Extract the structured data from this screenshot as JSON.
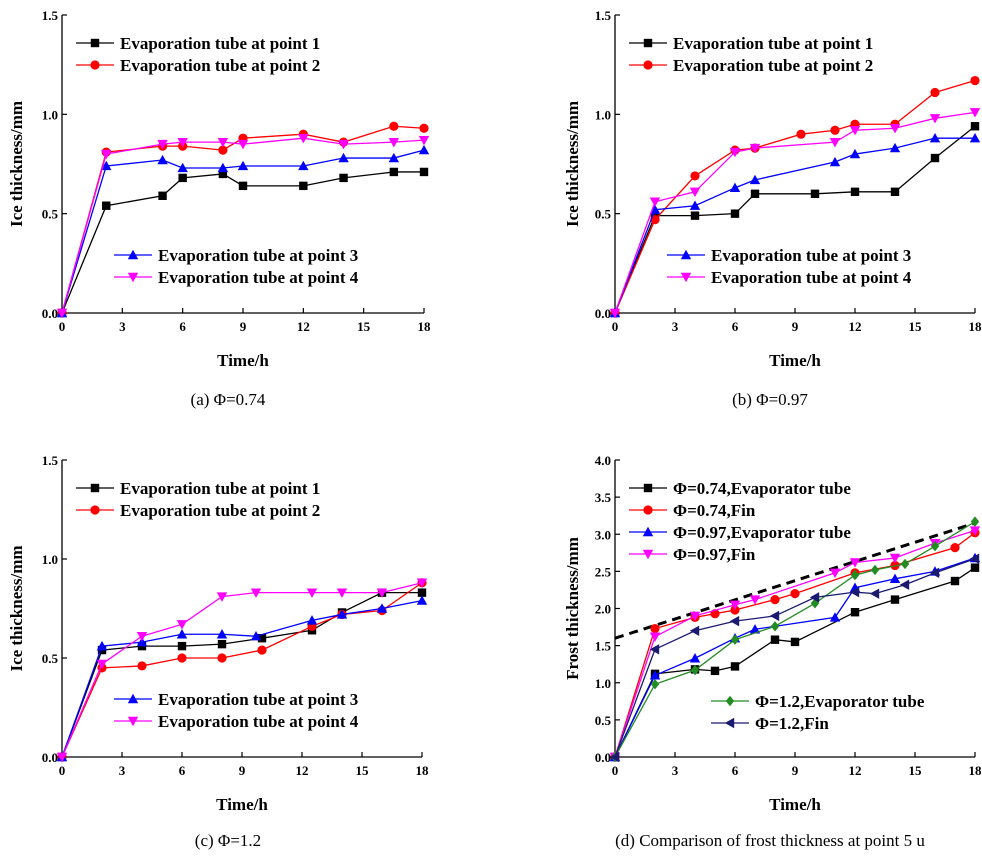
{
  "chart_data": [
    {
      "type": "line",
      "caption": "(a) Φ=0.74",
      "xlabel": "Time/h",
      "ylabel": "Ice thickness/mm",
      "xlim": [
        0,
        18
      ],
      "ylim": [
        0,
        1.5
      ],
      "xticks": [
        "0",
        "3",
        "6",
        "9",
        "12",
        "15",
        "18"
      ],
      "yticks": [
        "0.0",
        "0.5",
        "1.0",
        "1.5"
      ],
      "legend_groups": [
        {
          "position": "top-left",
          "items": [
            0,
            1
          ]
        },
        {
          "position": "bottom-right",
          "items": [
            2,
            3
          ]
        }
      ],
      "series": [
        {
          "name": "Evaporation tube at  point 1",
          "color": "#000000",
          "marker": "square",
          "x": [
            0,
            2.2,
            5,
            6,
            8,
            9,
            12,
            14,
            16.5,
            18
          ],
          "y": [
            0,
            0.54,
            0.59,
            0.68,
            0.7,
            0.64,
            0.64,
            0.68,
            0.71,
            0.71
          ]
        },
        {
          "name": "Evaporation tube at  point 2",
          "color": "#ff0000",
          "marker": "circle",
          "x": [
            0,
            2.2,
            5,
            6,
            8,
            9,
            12,
            14,
            16.5,
            18
          ],
          "y": [
            0,
            0.81,
            0.84,
            0.84,
            0.82,
            0.88,
            0.9,
            0.86,
            0.94,
            0.93
          ]
        },
        {
          "name": "Evaporation tube at point 3",
          "color": "#0000ff",
          "marker": "triangle-up",
          "x": [
            0,
            2.2,
            5,
            6,
            8,
            9,
            12,
            14,
            16.5,
            18
          ],
          "y": [
            0,
            0.74,
            0.77,
            0.73,
            0.73,
            0.74,
            0.74,
            0.78,
            0.78,
            0.82
          ]
        },
        {
          "name": "Evaporation tube at point 4",
          "color": "#ff00ff",
          "marker": "triangle-down",
          "x": [
            0,
            2.2,
            5,
            6,
            8,
            9,
            12,
            14,
            16.5,
            18
          ],
          "y": [
            0,
            0.8,
            0.85,
            0.86,
            0.86,
            0.85,
            0.88,
            0.85,
            0.86,
            0.87
          ]
        }
      ]
    },
    {
      "type": "line",
      "caption": "(b) Φ=0.97",
      "xlabel": "Time/h",
      "ylabel": "Ice thickness/mm",
      "xlim": [
        0,
        18
      ],
      "ylim": [
        0,
        1.5
      ],
      "xticks": [
        "0",
        "3",
        "6",
        "9",
        "12",
        "15",
        "18"
      ],
      "yticks": [
        "0.0",
        "0.5",
        "1.0",
        "1.5"
      ],
      "legend_groups": [
        {
          "position": "top-left",
          "items": [
            0,
            1
          ]
        },
        {
          "position": "bottom-right",
          "items": [
            2,
            3
          ]
        }
      ],
      "series": [
        {
          "name": "Evaporation tube at  point 1",
          "color": "#000000",
          "marker": "square",
          "x": [
            0,
            2,
            4,
            6,
            7,
            10,
            12,
            14,
            16,
            18
          ],
          "y": [
            0,
            0.49,
            0.49,
            0.5,
            0.6,
            0.6,
            0.61,
            0.61,
            0.78,
            0.94
          ]
        },
        {
          "name": "Evaporation tube at  point 2",
          "color": "#ff0000",
          "marker": "circle",
          "x": [
            0,
            2,
            4,
            6,
            7,
            9.3,
            11,
            12,
            14,
            16,
            18
          ],
          "y": [
            0,
            0.47,
            0.69,
            0.82,
            0.83,
            0.9,
            0.92,
            0.95,
            0.95,
            1.11,
            1.17
          ]
        },
        {
          "name": "Evaporation tube at point 3",
          "color": "#0000ff",
          "marker": "triangle-up",
          "x": [
            0,
            2,
            4,
            6,
            7,
            11,
            12,
            14,
            16,
            18
          ],
          "y": [
            0,
            0.52,
            0.54,
            0.63,
            0.67,
            0.76,
            0.8,
            0.83,
            0.88,
            0.88
          ]
        },
        {
          "name": "Evaporation tube at point 4",
          "color": "#ff00ff",
          "marker": "triangle-down",
          "x": [
            0,
            2,
            4,
            6,
            7,
            11,
            12,
            14,
            16,
            18
          ],
          "y": [
            0,
            0.56,
            0.61,
            0.81,
            0.83,
            0.86,
            0.92,
            0.93,
            0.98,
            1.01
          ]
        }
      ]
    },
    {
      "type": "line",
      "caption": "(c) Φ=1.2",
      "xlabel": "Time/h",
      "ylabel": "Ice thickness/mm",
      "xlim": [
        0,
        18
      ],
      "ylim": [
        0,
        1.5
      ],
      "xticks": [
        "0",
        "3",
        "6",
        "9",
        "12",
        "15",
        "18"
      ],
      "yticks": [
        "0.0",
        "0.5",
        "1.0",
        "1.5"
      ],
      "legend_groups": [
        {
          "position": "top-left",
          "items": [
            0,
            1
          ]
        },
        {
          "position": "bottom-right",
          "items": [
            2,
            3
          ]
        }
      ],
      "series": [
        {
          "name": "Evaporation tube at  point 1",
          "color": "#000000",
          "marker": "square",
          "x": [
            0,
            2,
            4,
            6,
            8,
            10,
            12.5,
            14,
            16,
            18
          ],
          "y": [
            0,
            0.54,
            0.56,
            0.56,
            0.57,
            0.6,
            0.64,
            0.73,
            0.83,
            0.83
          ]
        },
        {
          "name": "Evaporation tube at  point 2",
          "color": "#ff0000",
          "marker": "circle",
          "x": [
            0,
            2,
            4,
            6,
            8,
            10,
            12.5,
            14,
            16,
            18
          ],
          "y": [
            0,
            0.45,
            0.46,
            0.5,
            0.5,
            0.54,
            0.66,
            0.72,
            0.74,
            0.88
          ]
        },
        {
          "name": "Evaporation tube at point 3",
          "color": "#0000ff",
          "marker": "triangle-up",
          "x": [
            0,
            2,
            4,
            6,
            8,
            9.7,
            12.5,
            14,
            16,
            18
          ],
          "y": [
            0,
            0.56,
            0.58,
            0.62,
            0.62,
            0.61,
            0.69,
            0.72,
            0.75,
            0.79
          ]
        },
        {
          "name": "Evaporation tube at point 4",
          "color": "#ff00ff",
          "marker": "triangle-down",
          "x": [
            0,
            2,
            4,
            6,
            8,
            9.7,
            12.5,
            14,
            16,
            18
          ],
          "y": [
            0,
            0.47,
            0.61,
            0.67,
            0.81,
            0.83,
            0.83,
            0.83,
            0.83,
            0.88
          ]
        }
      ]
    },
    {
      "type": "line",
      "caption": "(d) Comparison of frost thickness at point 5 u",
      "xlabel": "Time/h",
      "ylabel": "Frost thickness/mm",
      "xlim": [
        0,
        18
      ],
      "ylim": [
        0,
        4
      ],
      "xticks": [
        "0",
        "3",
        "6",
        "9",
        "12",
        "15",
        "18"
      ],
      "yticks": [
        "0.0",
        "0.5",
        "1.0",
        "1.5",
        "2.0",
        "2.5",
        "3.0",
        "3.5",
        "4.0"
      ],
      "legend_groups": [
        {
          "position": "top-left",
          "items": [
            0,
            1,
            2,
            3
          ]
        },
        {
          "position": "bottom-right",
          "items": [
            4,
            5
          ]
        }
      ],
      "reference_line": {
        "style": "dashed",
        "color": "#000000",
        "x": [
          0,
          18
        ],
        "y": [
          1.6,
          3.15
        ]
      },
      "series": [
        {
          "name": "Φ=0.74,Evaporator tube",
          "color": "#000000",
          "marker": "square",
          "x": [
            0,
            2,
            4,
            5,
            6,
            8,
            9,
            12,
            14,
            17,
            18
          ],
          "y": [
            0,
            1.12,
            1.18,
            1.16,
            1.22,
            1.58,
            1.55,
            1.95,
            2.12,
            2.37,
            2.55
          ]
        },
        {
          "name": "Φ=0.74,Fin",
          "color": "#ff0000",
          "marker": "circle",
          "x": [
            0,
            2,
            4,
            5,
            6,
            8,
            9,
            12,
            14,
            17,
            18
          ],
          "y": [
            0,
            1.73,
            1.88,
            1.93,
            1.98,
            2.12,
            2.2,
            2.48,
            2.58,
            2.82,
            3.02
          ]
        },
        {
          "name": "Φ=0.97,Evaporator tube",
          "color": "#0000ff",
          "marker": "triangle-up",
          "x": [
            0,
            2,
            4,
            6,
            7,
            11,
            12,
            14,
            16,
            18
          ],
          "y": [
            0,
            1.1,
            1.33,
            1.6,
            1.72,
            1.88,
            2.28,
            2.4,
            2.5,
            2.68
          ]
        },
        {
          "name": "Φ=0.97,Fin",
          "color": "#ff00ff",
          "marker": "triangle-down",
          "x": [
            0,
            2,
            4,
            6,
            7,
            11,
            12,
            14,
            16,
            18
          ],
          "y": [
            0,
            1.62,
            1.9,
            2.05,
            2.12,
            2.48,
            2.62,
            2.68,
            2.88,
            3.05
          ]
        },
        {
          "name": "Φ=1.2,Evaporator tube",
          "color": "#228b22",
          "marker": "diamond",
          "x": [
            0,
            2,
            4,
            6,
            8,
            10,
            12,
            13,
            14.5,
            16,
            18
          ],
          "y": [
            0,
            0.98,
            1.17,
            1.58,
            1.76,
            2.07,
            2.45,
            2.52,
            2.6,
            2.84,
            3.17
          ]
        },
        {
          "name": "Φ=1.2,Fin",
          "color": "#1a1a70",
          "marker": "triangle-left",
          "x": [
            0,
            2,
            4,
            6,
            8,
            10,
            12,
            13,
            14.5,
            16,
            18
          ],
          "y": [
            0,
            1.45,
            1.7,
            1.83,
            1.9,
            2.15,
            2.22,
            2.2,
            2.32,
            2.48,
            2.67
          ]
        }
      ]
    }
  ]
}
